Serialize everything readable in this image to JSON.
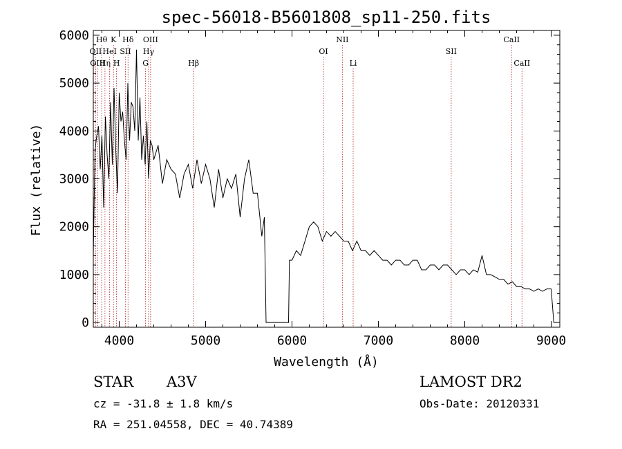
{
  "chart_data": {
    "type": "line",
    "title": "spec-56018-B5601808_sp11-250.fits",
    "xlabel": "Wavelength (Å)",
    "ylabel": "Flux (relative)",
    "xlim": [
      3700,
      9100
    ],
    "ylim": [
      -100,
      6100
    ],
    "x_ticks": [
      4000,
      5000,
      6000,
      7000,
      8000,
      9000
    ],
    "y_ticks": [
      0,
      1000,
      2000,
      3000,
      4000,
      5000,
      6000
    ],
    "grid": false,
    "series": [
      {
        "x": [
          3700,
          3720,
          3740,
          3760,
          3780,
          3800,
          3820,
          3840,
          3860,
          3880,
          3900,
          3920,
          3940,
          3960,
          3980,
          4000,
          4020,
          4040,
          4060,
          4080,
          4100,
          4120,
          4140,
          4160,
          4180,
          4200,
          4220,
          4240,
          4260,
          4280,
          4300,
          4320,
          4340,
          4360,
          4380,
          4400,
          4450,
          4500,
          4550,
          4600,
          4650,
          4700,
          4750,
          4800,
          4850,
          4900,
          4950,
          5000,
          5050,
          5100,
          5150,
          5200,
          5250,
          5300,
          5350,
          5400,
          5450,
          5500,
          5550,
          5600,
          5650,
          5680,
          5700,
          5710,
          5800,
          5900,
          5960,
          5970,
          6000,
          6050,
          6100,
          6150,
          6200,
          6250,
          6300,
          6350,
          6400,
          6450,
          6500,
          6550,
          6600,
          6650,
          6700,
          6750,
          6800,
          6850,
          6900,
          6950,
          7000,
          7050,
          7100,
          7150,
          7200,
          7250,
          7300,
          7350,
          7400,
          7450,
          7500,
          7550,
          7600,
          7650,
          7700,
          7750,
          7800,
          7850,
          7900,
          7950,
          8000,
          8050,
          8100,
          8150,
          8200,
          8250,
          8300,
          8350,
          8400,
          8450,
          8500,
          8550,
          8600,
          8650,
          8700,
          8750,
          8800,
          8850,
          8900,
          8950,
          9000,
          9030
        ],
        "y": [
          1400,
          3600,
          3900,
          4100,
          3200,
          3900,
          2400,
          4300,
          3500,
          3000,
          4600,
          3300,
          4900,
          3600,
          2700,
          4800,
          4200,
          4400,
          3800,
          3400,
          5000,
          3800,
          4600,
          4500,
          4000,
          5700,
          3800,
          4700,
          3400,
          3900,
          3300,
          4200,
          3000,
          3800,
          3700,
          3400,
          3700,
          2900,
          3400,
          3200,
          3100,
          2600,
          3100,
          3300,
          2800,
          3400,
          2900,
          3300,
          3000,
          2400,
          3200,
          2600,
          3000,
          2800,
          3100,
          2200,
          3000,
          3400,
          2700,
          2700,
          1800,
          2200,
          0,
          0,
          0,
          0,
          0,
          1300,
          1300,
          1500,
          1400,
          1700,
          2000,
          2100,
          2000,
          1700,
          1900,
          1800,
          1900,
          1800,
          1700,
          1700,
          1500,
          1700,
          1500,
          1500,
          1400,
          1500,
          1400,
          1300,
          1300,
          1200,
          1300,
          1300,
          1200,
          1200,
          1300,
          1300,
          1100,
          1100,
          1200,
          1200,
          1100,
          1200,
          1200,
          1100,
          1000,
          1100,
          1100,
          1000,
          1100,
          1050,
          1400,
          1000,
          1000,
          950,
          900,
          900,
          800,
          850,
          750,
          750,
          700,
          700,
          650,
          700,
          650,
          700,
          700,
          0
        ]
      }
    ],
    "line_markers": [
      {
        "name": "Hθ",
        "wavelength": 3797,
        "row": 1
      },
      {
        "name": "OII",
        "wavelength": 3727,
        "row": 2
      },
      {
        "name": "OIII",
        "wavelength": 3750,
        "row": 3
      },
      {
        "name": "Hη",
        "wavelength": 3835,
        "row": 3
      },
      {
        "name": "K",
        "wavelength": 3934,
        "row": 1
      },
      {
        "name": "HeI",
        "wavelength": 3889,
        "row": 2
      },
      {
        "name": "H",
        "wavelength": 3969,
        "row": 3
      },
      {
        "name": "SII",
        "wavelength": 4072,
        "row": 2
      },
      {
        "name": "Hδ",
        "wavelength": 4102,
        "row": 1
      },
      {
        "name": "OIII",
        "wavelength": 4363,
        "row": 1
      },
      {
        "name": "Hγ",
        "wavelength": 4340,
        "row": 2
      },
      {
        "name": "G",
        "wavelength": 4305,
        "row": 3
      },
      {
        "name": "Hβ",
        "wavelength": 4861,
        "row": 3
      },
      {
        "name": "NII",
        "wavelength": 6583,
        "row": 1
      },
      {
        "name": "OI",
        "wavelength": 6364,
        "row": 2
      },
      {
        "name": "Li",
        "wavelength": 6708,
        "row": 3
      },
      {
        "name": "SII",
        "wavelength": 7843,
        "row": 2
      },
      {
        "name": "CaII",
        "wavelength": 8542,
        "row": 1
      },
      {
        "name": "CaII",
        "wavelength": 8662,
        "row": 3
      }
    ]
  },
  "info": {
    "object_class": "STAR",
    "subclass": "A3V",
    "survey": "LAMOST DR2",
    "velocity": "cz = -31.8 ± 1.8 km/s",
    "obs_date": "Obs-Date: 20120331",
    "coords": "RA = 251.04558, DEC =  40.74389"
  }
}
